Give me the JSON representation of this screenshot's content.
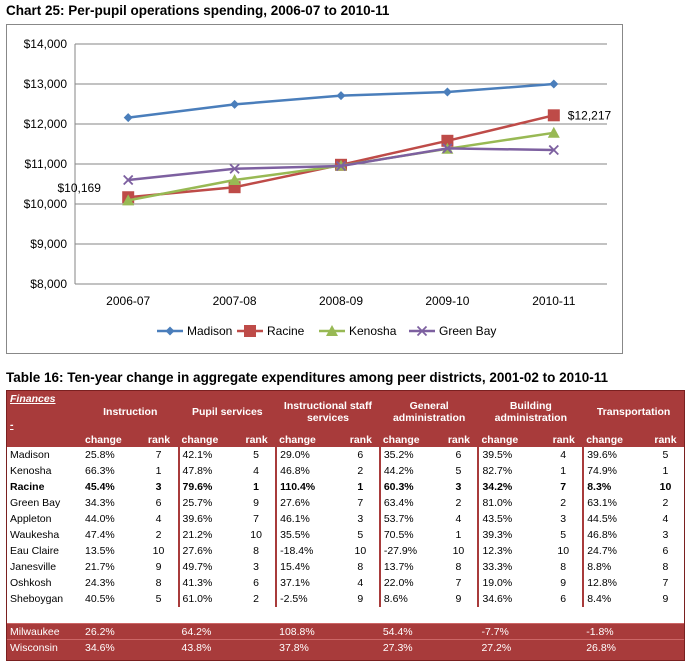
{
  "chart_title": "Chart 25: Per-pupil operations spending, 2006-07 to 2010-11",
  "chart_data": {
    "type": "line",
    "title": "Chart 25: Per-pupil operations spending, 2006-07 to 2010-11",
    "categories": [
      "2006-07",
      "2007-08",
      "2008-09",
      "2009-10",
      "2010-11"
    ],
    "ylim": [
      8000,
      14000
    ],
    "yticks": [
      "$8,000",
      "$9,000",
      "$10,000",
      "$11,000",
      "$12,000",
      "$13,000",
      "$14,000"
    ],
    "ytick_values": [
      8000,
      9000,
      10000,
      11000,
      12000,
      13000,
      14000
    ],
    "grid": true,
    "legend_position": "bottom",
    "series": [
      {
        "name": "Madison",
        "color": "#4a7ebb",
        "marker": "diamond",
        "values": [
          12160,
          12490,
          12710,
          12800,
          13000
        ]
      },
      {
        "name": "Racine",
        "color": "#be4b48",
        "marker": "square",
        "values": [
          10169,
          10420,
          10980,
          11580,
          12217
        ]
      },
      {
        "name": "Kenosha",
        "color": "#98b954",
        "marker": "triangle",
        "values": [
          10090,
          10600,
          10960,
          11380,
          11780
        ]
      },
      {
        "name": "Green Bay",
        "color": "#7d60a0",
        "marker": "x",
        "values": [
          10600,
          10880,
          10950,
          11390,
          11350
        ]
      }
    ],
    "annotations": [
      {
        "text": "$10,169",
        "series": "Racine",
        "category": "2006-07"
      },
      {
        "text": "$12,217",
        "series": "Racine",
        "category": "2010-11"
      }
    ]
  },
  "table": {
    "title": "Table 16: Ten-year change in aggregate expenditures among peer districts, 2001-02 to 2010-11",
    "corner_label": "Finances",
    "corner_dash": "-",
    "groups": [
      "Instruction",
      "Pupil services",
      "Instructional staff services",
      "General administration",
      "Building administration",
      "Transportation"
    ],
    "sub_change": "change",
    "sub_rank": "rank",
    "rows": [
      {
        "name": "Madison",
        "bold": false,
        "cells": [
          "25.8%",
          "7",
          "42.1%",
          "5",
          "29.0%",
          "6",
          "35.2%",
          "6",
          "39.5%",
          "4",
          "39.6%",
          "5"
        ]
      },
      {
        "name": "Kenosha",
        "bold": false,
        "cells": [
          "66.3%",
          "1",
          "47.8%",
          "4",
          "46.8%",
          "2",
          "44.2%",
          "5",
          "82.7%",
          "1",
          "74.9%",
          "1"
        ]
      },
      {
        "name": "Racine",
        "bold": true,
        "cells": [
          "45.4%",
          "3",
          "79.6%",
          "1",
          "110.4%",
          "1",
          "60.3%",
          "3",
          "34.2%",
          "7",
          "8.3%",
          "10"
        ]
      },
      {
        "name": "Green Bay",
        "bold": false,
        "cells": [
          "34.3%",
          "6",
          "25.7%",
          "9",
          "27.6%",
          "7",
          "63.4%",
          "2",
          "81.0%",
          "2",
          "63.1%",
          "2"
        ]
      },
      {
        "name": "Appleton",
        "bold": false,
        "cells": [
          "44.0%",
          "4",
          "39.6%",
          "7",
          "46.1%",
          "3",
          "53.7%",
          "4",
          "43.5%",
          "3",
          "44.5%",
          "4"
        ]
      },
      {
        "name": "Waukesha",
        "bold": false,
        "cells": [
          "47.4%",
          "2",
          "21.2%",
          "10",
          "35.5%",
          "5",
          "70.5%",
          "1",
          "39.3%",
          "5",
          "46.8%",
          "3"
        ]
      },
      {
        "name": "Eau Claire",
        "bold": false,
        "cells": [
          "13.5%",
          "10",
          "27.6%",
          "8",
          "-18.4%",
          "10",
          "-27.9%",
          "10",
          "12.3%",
          "10",
          "24.7%",
          "6"
        ]
      },
      {
        "name": "Janesville",
        "bold": false,
        "cells": [
          "21.7%",
          "9",
          "49.7%",
          "3",
          "15.4%",
          "8",
          "13.7%",
          "8",
          "33.3%",
          "8",
          "8.8%",
          "8"
        ]
      },
      {
        "name": "Oshkosh",
        "bold": false,
        "cells": [
          "24.3%",
          "8",
          "41.3%",
          "6",
          "37.1%",
          "4",
          "22.0%",
          "7",
          "19.0%",
          "9",
          "12.8%",
          "7"
        ]
      },
      {
        "name": "Sheboygan",
        "bold": false,
        "cells": [
          "40.5%",
          "5",
          "61.0%",
          "2",
          "-2.5%",
          "9",
          "8.6%",
          "9",
          "34.6%",
          "6",
          "8.4%",
          "9"
        ]
      }
    ],
    "footer_rows": [
      {
        "name": "Milwaukee",
        "cells": [
          "26.2%",
          "64.2%",
          "108.8%",
          "54.4%",
          "-7.7%",
          "-1.8%"
        ]
      },
      {
        "name": "Wisconsin",
        "cells": [
          "34.6%",
          "43.8%",
          "37.8%",
          "27.3%",
          "27.2%",
          "26.8%"
        ]
      }
    ]
  }
}
